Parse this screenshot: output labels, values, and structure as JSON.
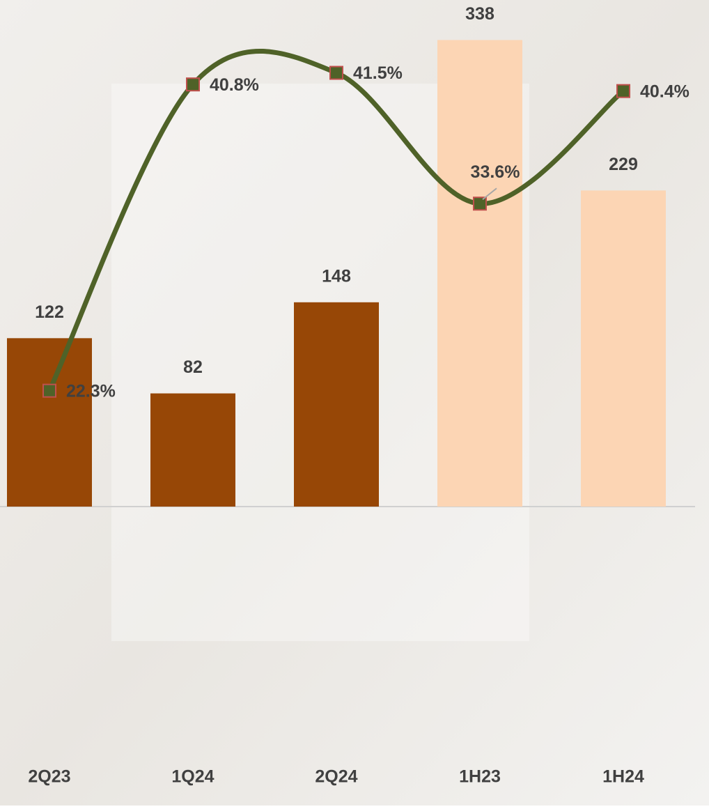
{
  "chart_data": {
    "type": "bar",
    "categories": [
      "2Q23",
      "1Q24",
      "2Q24",
      "1H23",
      "1H24"
    ],
    "series": [
      {
        "type": "bar",
        "values": [
          122,
          82,
          148,
          338,
          229
        ],
        "colors": [
          "#974706",
          "#974706",
          "#974706",
          "#fcd5b4",
          "#fcd5b4"
        ]
      },
      {
        "type": "line",
        "axis": "y2",
        "values": [
          22.3,
          40.8,
          41.5,
          33.6,
          40.4
        ],
        "value_labels": [
          "22.3%",
          "40.8%",
          "41.5%",
          "33.6%",
          "40.4%"
        ],
        "color": "#4f6228",
        "marker_color": "#4f6228",
        "marker_edge_color": "#c0504d",
        "smooth": true
      }
    ],
    "ylim": [
      0,
      367
    ],
    "y2lim": [
      15.3,
      45.9
    ]
  }
}
